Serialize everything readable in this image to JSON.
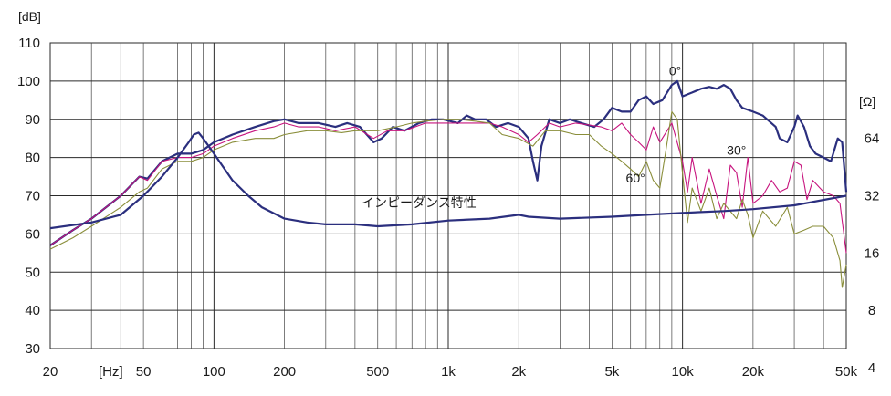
{
  "chart_data": {
    "type": "line",
    "x_scale": "log",
    "xlim": [
      20,
      50000
    ],
    "ylim": [
      30,
      110
    ],
    "y_unit": "[dB]",
    "x_unit": "[Hz]",
    "y2_unit": "[Ω]",
    "x_ticks": [
      {
        "value": 20,
        "label": "20"
      },
      {
        "value": 50,
        "label": "50"
      },
      {
        "value": 100,
        "label": "100"
      },
      {
        "value": 200,
        "label": "200"
      },
      {
        "value": 500,
        "label": "500"
      },
      {
        "value": 1000,
        "label": "1k"
      },
      {
        "value": 2000,
        "label": "2k"
      },
      {
        "value": 5000,
        "label": "5k"
      },
      {
        "value": 10000,
        "label": "10k"
      },
      {
        "value": 20000,
        "label": "20k"
      },
      {
        "value": 50000,
        "label": "50k"
      }
    ],
    "y_ticks": [
      110,
      100,
      90,
      80,
      70,
      60,
      50,
      40,
      30
    ],
    "y2_ticks": [
      {
        "label": "64",
        "at_db": 85
      },
      {
        "label": "32",
        "at_db": 70
      },
      {
        "label": "16",
        "at_db": 55
      },
      {
        "label": "8",
        "at_db": 40
      },
      {
        "label": "4",
        "at_db": 25
      }
    ],
    "grid": true,
    "series": [
      {
        "name": "0°",
        "color": "#2b2f7e",
        "width": 2.2,
        "points": [
          [
            20,
            57
          ],
          [
            25,
            61
          ],
          [
            30,
            64
          ],
          [
            40,
            70
          ],
          [
            48,
            75
          ],
          [
            52,
            74.5
          ],
          [
            60,
            79
          ],
          [
            70,
            81
          ],
          [
            80,
            81
          ],
          [
            90,
            82
          ],
          [
            100,
            84
          ],
          [
            120,
            86
          ],
          [
            150,
            88
          ],
          [
            180,
            89.5
          ],
          [
            200,
            90
          ],
          [
            230,
            89
          ],
          [
            280,
            89
          ],
          [
            330,
            88
          ],
          [
            370,
            89
          ],
          [
            420,
            88
          ],
          [
            480,
            84
          ],
          [
            520,
            85
          ],
          [
            580,
            88
          ],
          [
            650,
            87
          ],
          [
            750,
            89
          ],
          [
            850,
            90
          ],
          [
            950,
            90
          ],
          [
            1100,
            89
          ],
          [
            1200,
            91
          ],
          [
            1300,
            90
          ],
          [
            1450,
            90
          ],
          [
            1600,
            88
          ],
          [
            1800,
            89
          ],
          [
            2000,
            88
          ],
          [
            2200,
            85
          ],
          [
            2300,
            79
          ],
          [
            2400,
            74
          ],
          [
            2500,
            83
          ],
          [
            2700,
            90
          ],
          [
            3000,
            89
          ],
          [
            3300,
            90
          ],
          [
            3700,
            89
          ],
          [
            4200,
            88
          ],
          [
            4600,
            90
          ],
          [
            5000,
            93
          ],
          [
            5500,
            92
          ],
          [
            6000,
            92
          ],
          [
            6500,
            95
          ],
          [
            7000,
            96
          ],
          [
            7500,
            94
          ],
          [
            8200,
            95
          ],
          [
            9000,
            99
          ],
          [
            9500,
            100
          ],
          [
            10000,
            96
          ],
          [
            11000,
            97
          ],
          [
            12000,
            98
          ],
          [
            13000,
            98.5
          ],
          [
            14000,
            98
          ],
          [
            15000,
            99
          ],
          [
            16000,
            98
          ],
          [
            17000,
            95
          ],
          [
            18000,
            93
          ],
          [
            20000,
            92
          ],
          [
            22000,
            91
          ],
          [
            25000,
            88
          ],
          [
            26000,
            85
          ],
          [
            28000,
            84
          ],
          [
            30000,
            88
          ],
          [
            31000,
            91
          ],
          [
            33000,
            88
          ],
          [
            35000,
            83
          ],
          [
            37000,
            81
          ],
          [
            40000,
            80
          ],
          [
            43000,
            79
          ],
          [
            46000,
            85
          ],
          [
            48000,
            84
          ],
          [
            50000,
            71
          ]
        ]
      },
      {
        "name": "30°",
        "color": "#c7147e",
        "width": 1.1,
        "points": [
          [
            20,
            57
          ],
          [
            25,
            61
          ],
          [
            30,
            64
          ],
          [
            40,
            70
          ],
          [
            48,
            75
          ],
          [
            52,
            74
          ],
          [
            60,
            79
          ],
          [
            70,
            80
          ],
          [
            80,
            80
          ],
          [
            90,
            81
          ],
          [
            100,
            83
          ],
          [
            120,
            85
          ],
          [
            150,
            87
          ],
          [
            180,
            88
          ],
          [
            200,
            89
          ],
          [
            230,
            88
          ],
          [
            280,
            88
          ],
          [
            330,
            87
          ],
          [
            400,
            88
          ],
          [
            480,
            85
          ],
          [
            550,
            87
          ],
          [
            650,
            87
          ],
          [
            800,
            89
          ],
          [
            950,
            89
          ],
          [
            1100,
            89
          ],
          [
            1300,
            89
          ],
          [
            1500,
            89
          ],
          [
            1700,
            88
          ],
          [
            2000,
            86
          ],
          [
            2200,
            84
          ],
          [
            2400,
            86
          ],
          [
            2700,
            89
          ],
          [
            3000,
            88
          ],
          [
            3500,
            89
          ],
          [
            4000,
            88.5
          ],
          [
            4500,
            88
          ],
          [
            5000,
            87
          ],
          [
            5500,
            89
          ],
          [
            6000,
            86
          ],
          [
            6500,
            84
          ],
          [
            7000,
            82
          ],
          [
            7500,
            88
          ],
          [
            8000,
            84
          ],
          [
            9000,
            89
          ],
          [
            10000,
            79
          ],
          [
            10500,
            71
          ],
          [
            11000,
            80
          ],
          [
            12000,
            68
          ],
          [
            13000,
            77
          ],
          [
            14000,
            70
          ],
          [
            15000,
            64
          ],
          [
            16000,
            78
          ],
          [
            17000,
            76
          ],
          [
            18000,
            67
          ],
          [
            19000,
            80
          ],
          [
            20000,
            68
          ],
          [
            22000,
            70
          ],
          [
            24000,
            74
          ],
          [
            26000,
            71
          ],
          [
            28000,
            72
          ],
          [
            30000,
            79
          ],
          [
            32000,
            78
          ],
          [
            34000,
            69
          ],
          [
            36000,
            74
          ],
          [
            40000,
            71
          ],
          [
            44000,
            70
          ],
          [
            47000,
            68
          ],
          [
            50000,
            55
          ]
        ]
      },
      {
        "name": "60°",
        "color": "#8a8e3a",
        "width": 1.1,
        "points": [
          [
            20,
            56
          ],
          [
            25,
            59
          ],
          [
            30,
            62
          ],
          [
            40,
            67
          ],
          [
            48,
            71
          ],
          [
            52,
            72
          ],
          [
            60,
            77
          ],
          [
            70,
            79
          ],
          [
            80,
            79
          ],
          [
            90,
            80
          ],
          [
            100,
            82
          ],
          [
            120,
            84
          ],
          [
            150,
            85
          ],
          [
            180,
            85
          ],
          [
            200,
            86
          ],
          [
            250,
            87
          ],
          [
            300,
            87
          ],
          [
            350,
            86.5
          ],
          [
            400,
            87
          ],
          [
            500,
            87
          ],
          [
            600,
            88
          ],
          [
            700,
            89
          ],
          [
            800,
            89.5
          ],
          [
            950,
            90
          ],
          [
            1100,
            90
          ],
          [
            1300,
            89.5
          ],
          [
            1500,
            89
          ],
          [
            1700,
            86
          ],
          [
            2000,
            85
          ],
          [
            2300,
            83
          ],
          [
            2600,
            87
          ],
          [
            3000,
            87
          ],
          [
            3500,
            86
          ],
          [
            4000,
            86
          ],
          [
            4500,
            83
          ],
          [
            5000,
            81
          ],
          [
            5500,
            79
          ],
          [
            6000,
            77
          ],
          [
            6500,
            75
          ],
          [
            7000,
            79
          ],
          [
            7500,
            74
          ],
          [
            8000,
            72
          ],
          [
            8500,
            82
          ],
          [
            9000,
            92
          ],
          [
            9500,
            90
          ],
          [
            10000,
            76
          ],
          [
            10500,
            63
          ],
          [
            11000,
            72
          ],
          [
            12000,
            66
          ],
          [
            13000,
            72
          ],
          [
            14000,
            64
          ],
          [
            15000,
            68
          ],
          [
            17000,
            64
          ],
          [
            18000,
            69
          ],
          [
            19000,
            65
          ],
          [
            20000,
            59
          ],
          [
            22000,
            66
          ],
          [
            25000,
            62
          ],
          [
            28000,
            67
          ],
          [
            30000,
            60
          ],
          [
            33000,
            61
          ],
          [
            36000,
            62
          ],
          [
            40000,
            62
          ],
          [
            44000,
            59
          ],
          [
            47000,
            53
          ],
          [
            48000,
            46
          ],
          [
            50000,
            52
          ]
        ]
      },
      {
        "name": "インピーダンス特性",
        "color": "#2b2f7e",
        "width": 2.2,
        "points": [
          [
            20,
            61.5
          ],
          [
            30,
            63
          ],
          [
            40,
            65
          ],
          [
            50,
            70
          ],
          [
            60,
            75
          ],
          [
            70,
            80
          ],
          [
            78,
            84
          ],
          [
            82,
            86
          ],
          [
            86,
            86.5
          ],
          [
            90,
            85
          ],
          [
            100,
            81
          ],
          [
            120,
            74
          ],
          [
            140,
            70
          ],
          [
            160,
            67
          ],
          [
            200,
            64
          ],
          [
            250,
            63
          ],
          [
            300,
            62.5
          ],
          [
            400,
            62.5
          ],
          [
            500,
            62
          ],
          [
            700,
            62.5
          ],
          [
            1000,
            63.5
          ],
          [
            1500,
            64
          ],
          [
            2000,
            65
          ],
          [
            2200,
            64.5
          ],
          [
            3000,
            64
          ],
          [
            5000,
            64.5
          ],
          [
            7000,
            65
          ],
          [
            10000,
            65.5
          ],
          [
            15000,
            66
          ],
          [
            20000,
            66.5
          ],
          [
            30000,
            67.5
          ],
          [
            50000,
            70
          ]
        ]
      }
    ],
    "annotations": [
      {
        "text": "0°",
        "x": 9300,
        "y": 101.5
      },
      {
        "text": "30°",
        "x": 17000,
        "y": 80.8
      },
      {
        "text": "60°",
        "x": 6300,
        "y": 73.5
      },
      {
        "text": "インピーダンス特性",
        "x": 750,
        "y": 67
      }
    ]
  }
}
